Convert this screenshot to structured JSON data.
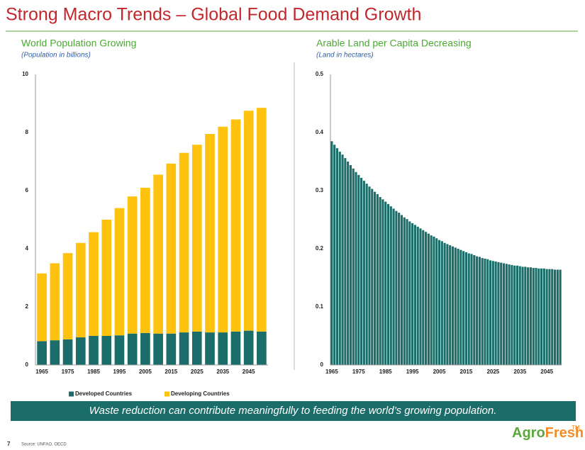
{
  "header": {
    "title": "Strong Macro Trends – Global Food Demand Growth"
  },
  "chart_data": [
    {
      "type": "bar",
      "stacked": true,
      "title": "World Population Growing",
      "subtitle": "(Population in billions)",
      "categories": [
        "1965",
        null,
        "1975",
        null,
        "1985",
        null,
        "1995",
        null,
        "2005",
        null,
        "2015",
        null,
        "2025",
        null,
        "2035",
        null,
        "2045",
        null
      ],
      "series": [
        {
          "name": "Developed Countries",
          "color": "#1b6d69",
          "values": [
            0.82,
            0.85,
            0.88,
            0.95,
            1.0,
            1.0,
            1.02,
            1.08,
            1.1,
            1.08,
            1.08,
            1.12,
            1.15,
            1.12,
            1.12,
            1.15,
            1.18,
            1.15
          ]
        },
        {
          "name": "Developing Countries",
          "color": "#ffc20e",
          "values": [
            2.33,
            2.65,
            2.97,
            3.25,
            3.57,
            4.0,
            4.38,
            4.72,
            5.0,
            5.47,
            5.85,
            6.18,
            6.43,
            6.83,
            7.08,
            7.3,
            7.57,
            7.7
          ]
        }
      ],
      "ylim": [
        0,
        10
      ],
      "yticks": [
        0,
        2,
        4,
        6,
        8,
        10
      ],
      "grid": false,
      "legend": "bottom"
    },
    {
      "type": "bar",
      "title": "Arable Land per Capita Decreasing",
      "subtitle": "(Land in hectares)",
      "categories": [
        "1965",
        null,
        null,
        null,
        null,
        null,
        null,
        null,
        null,
        null,
        "1975",
        null,
        null,
        null,
        null,
        null,
        null,
        null,
        null,
        null,
        "1985",
        null,
        null,
        null,
        null,
        null,
        null,
        null,
        null,
        null,
        "1995",
        null,
        null,
        null,
        null,
        null,
        null,
        null,
        null,
        null,
        "2005",
        null,
        null,
        null,
        null,
        null,
        null,
        null,
        null,
        null,
        "2015",
        null,
        null,
        null,
        null,
        null,
        null,
        null,
        null,
        null,
        "2025",
        null,
        null,
        null,
        null,
        null,
        null,
        null,
        null,
        null,
        "2035",
        null,
        null,
        null,
        null,
        null,
        null,
        null,
        null,
        null,
        "2045",
        null,
        null,
        null,
        null,
        null
      ],
      "values": [
        0.385,
        0.379,
        0.373,
        0.367,
        0.362,
        0.356,
        0.35,
        0.344,
        0.338,
        0.332,
        0.327,
        0.322,
        0.317,
        0.312,
        0.307,
        0.303,
        0.298,
        0.294,
        0.289,
        0.285,
        0.281,
        0.277,
        0.273,
        0.269,
        0.265,
        0.262,
        0.258,
        0.254,
        0.251,
        0.247,
        0.244,
        0.241,
        0.238,
        0.235,
        0.232,
        0.229,
        0.226,
        0.223,
        0.221,
        0.218,
        0.215,
        0.213,
        0.21,
        0.208,
        0.206,
        0.204,
        0.202,
        0.2,
        0.198,
        0.196,
        0.194,
        0.192,
        0.191,
        0.189,
        0.187,
        0.186,
        0.184,
        0.183,
        0.182,
        0.18,
        0.179,
        0.178,
        0.177,
        0.176,
        0.175,
        0.174,
        0.173,
        0.172,
        0.171,
        0.171,
        0.17,
        0.169,
        0.169,
        0.168,
        0.168,
        0.167,
        0.167,
        0.166,
        0.166,
        0.166,
        0.165,
        0.165,
        0.165,
        0.164,
        0.164,
        0.164
      ],
      "color": "#1b6d69",
      "ylim": [
        0,
        0.5
      ],
      "yticks": [
        0,
        0.1,
        0.2,
        0.3,
        0.4,
        0.5
      ],
      "grid": false
    }
  ],
  "banner": "Waste reduction can contribute meaningfully to feeding the world’s growing population.",
  "footer": {
    "page_number": "7",
    "source": "Source: UNFAO, OECD"
  },
  "logo": {
    "agro": "Agro",
    "fresh": "Fresh",
    "mark": "TM"
  }
}
